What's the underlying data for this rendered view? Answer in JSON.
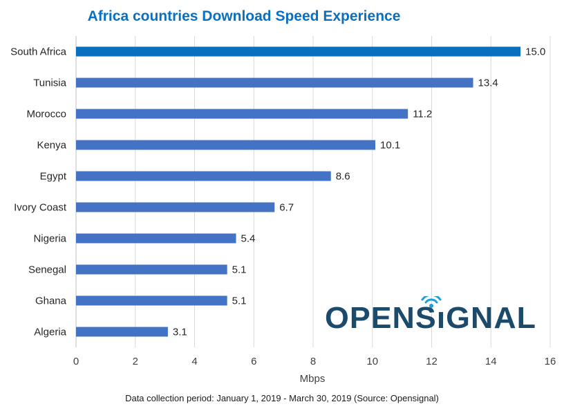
{
  "chart_data": {
    "type": "bar",
    "orientation": "horizontal",
    "title": "Africa countries Download Speed Experience",
    "xlabel": "Mbps",
    "ylabel": "",
    "xlim": [
      0,
      16
    ],
    "ticks": [
      0,
      2,
      4,
      6,
      8,
      10,
      12,
      14,
      16
    ],
    "grid": true,
    "categories": [
      "South Africa",
      "Tunisia",
      "Morocco",
      "Kenya",
      "Egypt",
      "Ivory Coast",
      "Nigeria",
      "Senegal",
      "Ghana",
      "Algeria"
    ],
    "values": [
      15.0,
      13.4,
      11.2,
      10.1,
      8.6,
      6.7,
      5.4,
      5.1,
      5.1,
      3.1
    ],
    "value_labels": [
      "15.0",
      "13.4",
      "11.2",
      "10.1",
      "8.6",
      "6.7",
      "5.4",
      "5.1",
      "5.1",
      "3.1"
    ]
  },
  "colors": {
    "highlight_bar": "#0B6FBF",
    "bar": "#4472C4",
    "title": "#0B6FBF",
    "logo": "#1B4A6B"
  },
  "footnote": "Data collection period: January 1, 2019 - March 30, 2019 (Source: Opensignal)",
  "logo": {
    "text": "OPENSIGNAL",
    "icon": "signal-wave-icon"
  }
}
